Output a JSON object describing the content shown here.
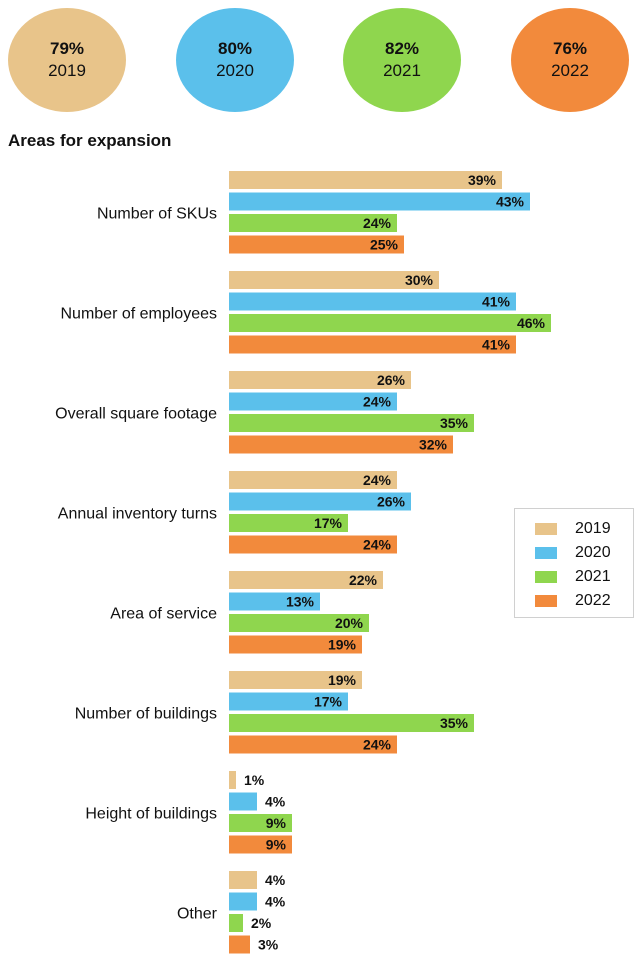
{
  "summary": [
    {
      "pct": "79%",
      "year": "2019",
      "color": "#e8c48a"
    },
    {
      "pct": "80%",
      "year": "2020",
      "color": "#5bc0eb"
    },
    {
      "pct": "82%",
      "year": "2021",
      "color": "#8fd64e"
    },
    {
      "pct": "76%",
      "year": "2022",
      "color": "#f28a3c"
    }
  ],
  "chart_data": {
    "type": "bar",
    "orientation": "horizontal",
    "title": "Areas for expansion",
    "categories": [
      "Number of SKUs",
      "Number of employees",
      "Overall square footage",
      "Annual inventory turns",
      "Area of service",
      "Number of buildings",
      "Height of buildings",
      "Other"
    ],
    "series": [
      {
        "name": "2019",
        "color": "#e8c48a",
        "values": [
          39,
          30,
          26,
          24,
          22,
          19,
          1,
          4
        ]
      },
      {
        "name": "2020",
        "color": "#5bc0eb",
        "values": [
          43,
          41,
          24,
          26,
          13,
          17,
          4,
          4
        ]
      },
      {
        "name": "2021",
        "color": "#8fd64e",
        "values": [
          24,
          46,
          35,
          17,
          20,
          35,
          9,
          2
        ]
      },
      {
        "name": "2022",
        "color": "#f28a3c",
        "values": [
          25,
          41,
          32,
          24,
          19,
          24,
          9,
          3
        ]
      }
    ],
    "value_suffix": "%",
    "legend_position": "right"
  }
}
